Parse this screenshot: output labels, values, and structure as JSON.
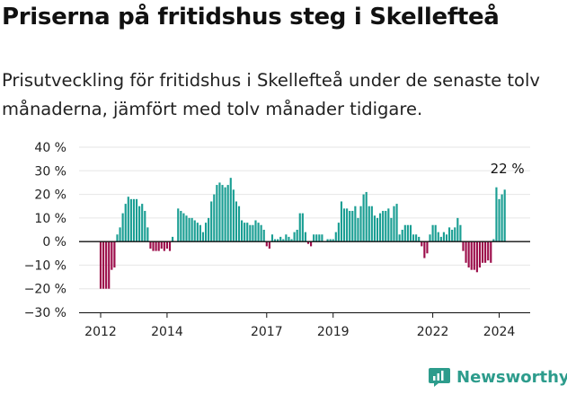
{
  "title": "Priserna på fritidshus steg i Skellefteå",
  "subtitle": "Prisutveckling för fritidshus i Skellefteå under de senaste tolv månaderna, jämfört med tolv månader tidigare.",
  "brand": "Newsworthy",
  "colors": {
    "positive": "#1a9e93",
    "negative": "#9c0d4a",
    "axis": "#111111",
    "brand": "#2d9c8c"
  },
  "chart_data": {
    "type": "bar",
    "x_unit": "month",
    "ylim": [
      -30,
      40
    ],
    "ytick_labels": [
      "40 %",
      "30 %",
      "20 %",
      "10 %",
      "0 %",
      "−10 %",
      "−20 %",
      "−30 %"
    ],
    "ytick_values": [
      40,
      30,
      20,
      10,
      0,
      -10,
      -20,
      -30
    ],
    "xtick_labels": [
      "2012",
      "2014",
      "2017",
      "2019",
      "2022",
      "2024"
    ],
    "annotation": "22 %",
    "series": [
      {
        "values": [
          -20,
          -20,
          -20,
          -20,
          -12,
          -11,
          3,
          6,
          12,
          16,
          19,
          18,
          18,
          18,
          15,
          16,
          13,
          6,
          -3,
          -4,
          -4,
          -4,
          -3,
          -4,
          -3,
          -4,
          2,
          0,
          14,
          13,
          12,
          11,
          10,
          10,
          9,
          8,
          7,
          4,
          8,
          10,
          17,
          20,
          24,
          25,
          24,
          23,
          24,
          27,
          22,
          17,
          15,
          9,
          8,
          8,
          7,
          7,
          9,
          8,
          7,
          5,
          -2,
          -3,
          3,
          1,
          1,
          2,
          1,
          3,
          2,
          1,
          4,
          5,
          12,
          12,
          4,
          -1,
          -2,
          3,
          3,
          3,
          3,
          0,
          1,
          1,
          1,
          4,
          8,
          17,
          14,
          14,
          13,
          13,
          15,
          10,
          15,
          20,
          21,
          15,
          15,
          11,
          10,
          12,
          13,
          13,
          14,
          10,
          15,
          16,
          3,
          5,
          7,
          7,
          7,
          3,
          3,
          2,
          -2,
          -7,
          -5,
          3,
          7,
          7,
          4,
          2,
          4,
          3,
          6,
          5,
          6,
          10,
          7,
          -4,
          -9,
          -11,
          -12,
          -12,
          -13,
          -11,
          -9,
          -9,
          -8,
          -9,
          1,
          23,
          18,
          20,
          22
        ]
      }
    ]
  }
}
